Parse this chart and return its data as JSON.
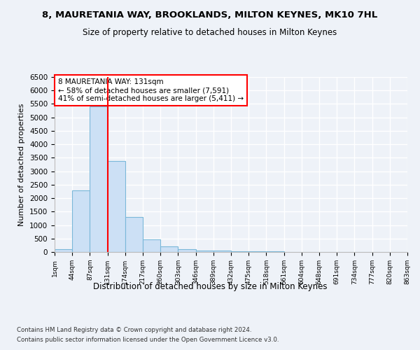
{
  "title1": "8, MAURETANIA WAY, BROOKLANDS, MILTON KEYNES, MK10 7HL",
  "title2": "Size of property relative to detached houses in Milton Keynes",
  "xlabel": "Distribution of detached houses by size in Milton Keynes",
  "ylabel": "Number of detached properties",
  "annotation_line1": "8 MAURETANIA WAY: 131sqm",
  "annotation_line2": "← 58% of detached houses are smaller (7,591)",
  "annotation_line3": "41% of semi-detached houses are larger (5,411) →",
  "footer1": "Contains HM Land Registry data © Crown copyright and database right 2024.",
  "footer2": "Contains public sector information licensed under the Open Government Licence v3.0.",
  "bar_color": "#cce0f5",
  "bar_edgecolor": "#7ab8d9",
  "redline_x": 3,
  "bar_width": 1,
  "bar_heights": [
    100,
    2280,
    5400,
    3380,
    1310,
    480,
    200,
    105,
    55,
    45,
    30,
    20,
    15,
    10,
    5,
    5,
    3,
    2,
    2,
    1
  ],
  "tick_labels": [
    "1sqm",
    "44sqm",
    "87sqm",
    "131sqm",
    "174sqm",
    "217sqm",
    "260sqm",
    "303sqm",
    "346sqm",
    "389sqm",
    "432sqm",
    "475sqm",
    "518sqm",
    "561sqm",
    "604sqm",
    "648sqm",
    "691sqm",
    "734sqm",
    "777sqm",
    "820sqm",
    "863sqm"
  ],
  "ylim": [
    0,
    6500
  ],
  "yticks": [
    0,
    500,
    1000,
    1500,
    2000,
    2500,
    3000,
    3500,
    4000,
    4500,
    5000,
    5500,
    6000,
    6500
  ],
  "bg_color": "#eef2f8",
  "grid_color": "#ffffff",
  "n_bars": 20
}
